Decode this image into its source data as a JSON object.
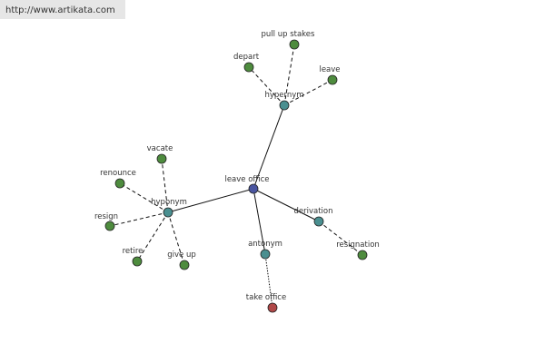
{
  "header": {
    "url": "http://www.artikata.com"
  },
  "nodes": [
    {
      "label": "leave office"
    },
    {
      "label": "hypernym"
    },
    {
      "label": "pull up stakes"
    },
    {
      "label": "depart"
    },
    {
      "label": "leave"
    },
    {
      "label": "hyponym"
    },
    {
      "label": "vacate"
    },
    {
      "label": "renounce"
    },
    {
      "label": "resign"
    },
    {
      "label": "retire"
    },
    {
      "label": "give up"
    },
    {
      "label": "derivation"
    },
    {
      "label": "resignation"
    },
    {
      "label": "antonym"
    },
    {
      "label": "take office"
    }
  ]
}
